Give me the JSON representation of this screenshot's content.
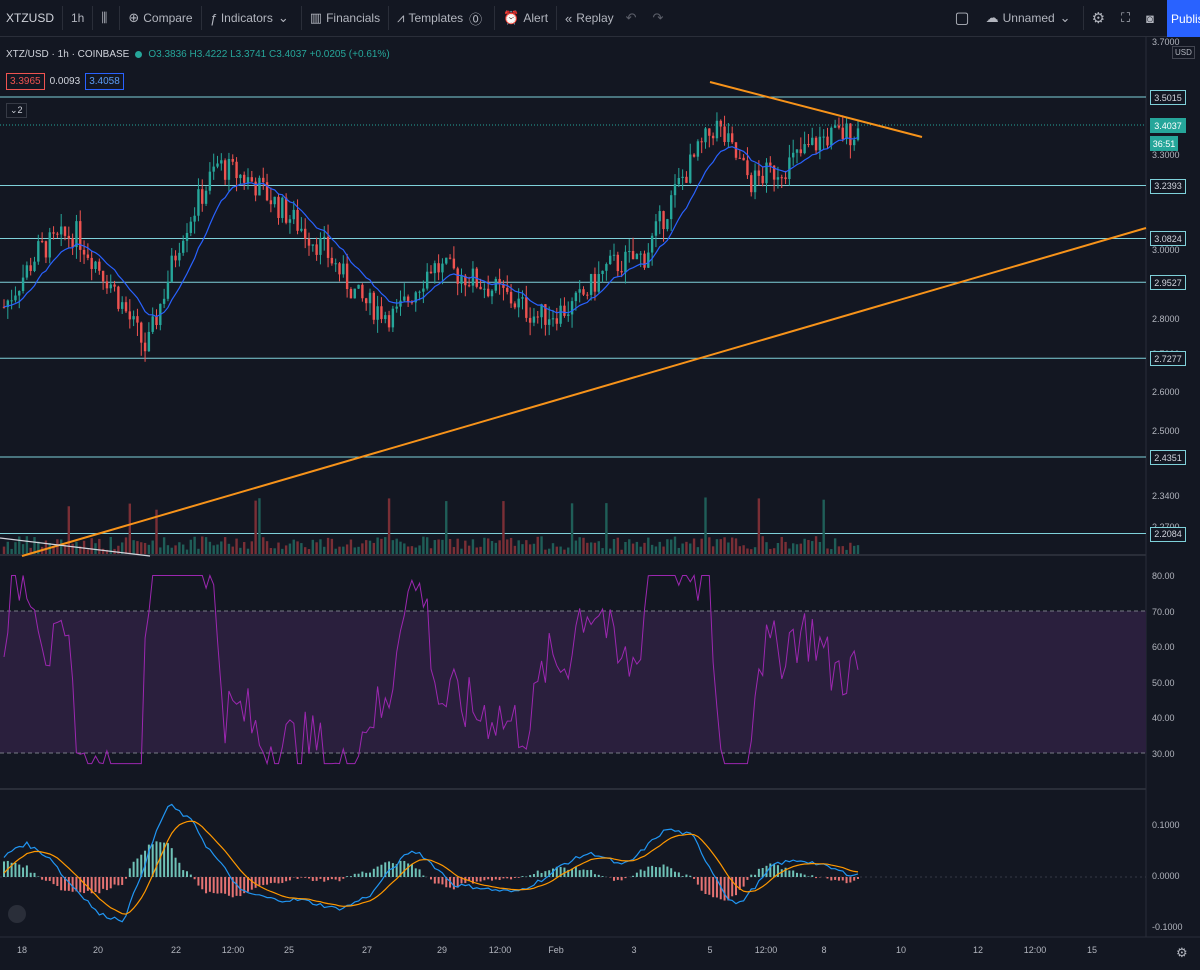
{
  "toolbar": {
    "symbol": "XTZUSD",
    "interval": "1h",
    "compare": "Compare",
    "indicators": "Indicators",
    "financials": "Financials",
    "templates": "Templates",
    "alert": "Alert",
    "replay": "Replay",
    "layout_name": "Unnamed",
    "publish": "Publish"
  },
  "legend": {
    "title": "XTZ/USD · 1h · COINBASE",
    "ohlc": "O3.3836 H3.4222 L3.3741 C3.4037 +0.0205 (+0.61%)",
    "bid": "3.3965",
    "spread": "0.0093",
    "ask": "3.4058",
    "collapsed_count": "2"
  },
  "price_axis": {
    "currency": "USD",
    "ticks": [
      "3.7000",
      "3.3000",
      "3.2000",
      "3.0000",
      "2.9000",
      "2.8000",
      "2.7000",
      "2.6000",
      "2.5000",
      "2.3400",
      "2.2700"
    ],
    "level_tags": [
      "3.5015",
      "3.2393",
      "3.0824",
      "2.9527",
      "2.7277",
      "2.4351",
      "2.2084"
    ],
    "current_price": "3.4037",
    "countdown": "36:51"
  },
  "rsi_axis": {
    "ticks": [
      "80.00",
      "70.00",
      "60.00",
      "50.00",
      "40.00",
      "30.00"
    ]
  },
  "macd_axis": {
    "ticks": [
      "0.1000",
      "0.0000",
      "-0.1000"
    ]
  },
  "time_axis": {
    "labels": [
      "18",
      "20",
      "22",
      "12:00",
      "25",
      "27",
      "29",
      "12:00",
      "Feb",
      "3",
      "5",
      "12:00",
      "8",
      "10",
      "12",
      "12:00",
      "15"
    ]
  },
  "colors": {
    "bg": "#131722",
    "up": "#26a69a",
    "down": "#ef5350",
    "trend": "#f7931a",
    "level": "#7fd1da",
    "rsi": "#9c27b0",
    "ma": "#2962ff"
  },
  "chart_data": {
    "type": "line",
    "title": "",
    "xlabel": "",
    "ylabel": "",
    "ylim": [
      2.2,
      3.7
    ],
    "horizontal_levels": [
      3.5015,
      3.2393,
      3.0824,
      2.9527,
      2.7277,
      2.4351,
      2.2084
    ],
    "series": [
      {
        "name": "",
        "x": [
          "18",
          "19",
          "20",
          "21",
          "22",
          "22 12:00",
          "23",
          "24",
          "25",
          "26",
          "27",
          "28",
          "29",
          "29 12:00",
          "30",
          "Feb",
          "2",
          "3",
          "4",
          "5",
          "5 12:00",
          "6",
          "7",
          "8",
          "8 12:00"
        ],
        "values": [
          2.88,
          3.05,
          3.1,
          2.95,
          2.75,
          3.1,
          3.3,
          3.25,
          3.15,
          3.05,
          2.9,
          2.85,
          3.0,
          2.97,
          2.92,
          2.85,
          2.88,
          3.0,
          3.03,
          3.25,
          3.42,
          3.25,
          3.3,
          3.38,
          3.4
        ]
      }
    ]
  }
}
